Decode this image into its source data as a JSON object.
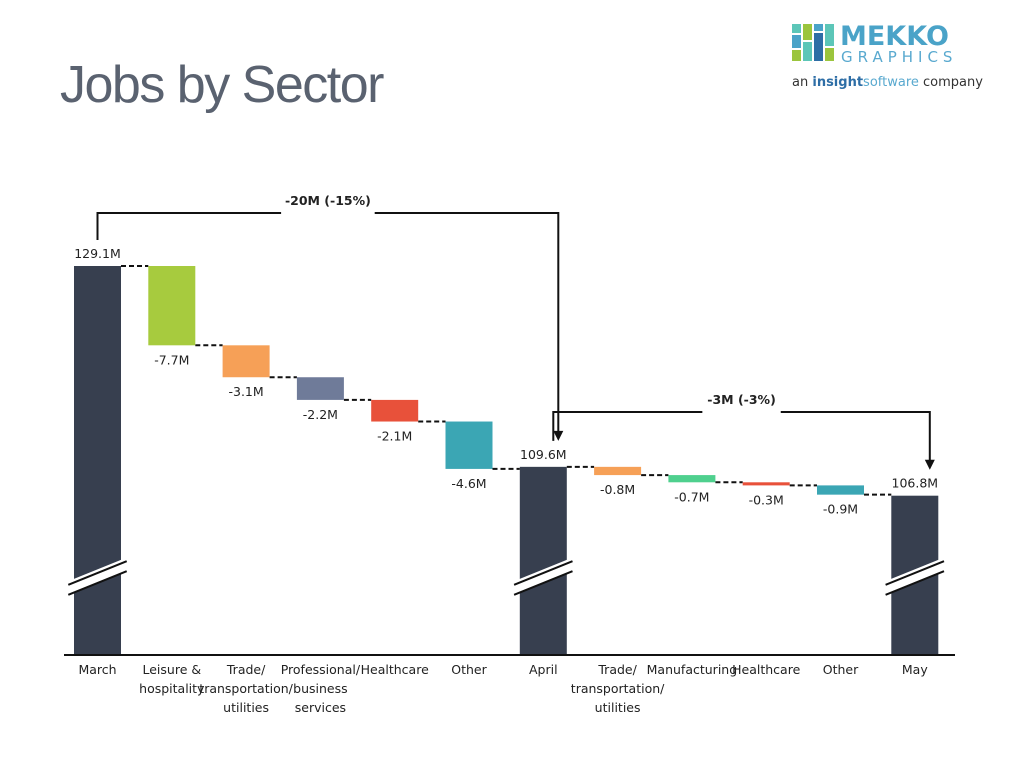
{
  "title": "Jobs by Sector",
  "logo": {
    "name": "MEKKO",
    "sub": "GRAPHICS",
    "tagline_prefix": "an",
    "tagline_brand_1": "insight",
    "tagline_brand_2": "software",
    "tagline_suffix": "company",
    "colors": [
      "#5cc6b8",
      "#4aa3c8",
      "#9bc53d",
      "#2e6ea6"
    ]
  },
  "chart_data": {
    "type": "waterfall",
    "title": "Jobs by Sector",
    "axis_break": true,
    "y_range": [
      100,
      130
    ],
    "colors": {
      "total": "#373f4f",
      "Leisure & hospitality": "#a7cb3e",
      "Trade/ transportation/ utilities": "#f6a057",
      "Professional/ business services": "#6f7b99",
      "Healthcare": "#e8513a",
      "Other": "#3ba6b4",
      "Manufacturing": "#4fd08e"
    },
    "bars": [
      {
        "category": "March",
        "kind": "total",
        "value": 129.1,
        "label": "129.1M",
        "cat_lines": [
          "March"
        ]
      },
      {
        "category": "Leisure & hospitality",
        "kind": "delta",
        "value": -7.7,
        "label": "-7.7M",
        "cat_lines": [
          "Leisure &",
          "hospitality"
        ]
      },
      {
        "category": "Trade/ transportation/ utilities",
        "kind": "delta",
        "value": -3.1,
        "label": "-3.1M",
        "cat_lines": [
          "Trade/",
          "transportation/",
          "utilities"
        ]
      },
      {
        "category": "Professional/ business services",
        "kind": "delta",
        "value": -2.2,
        "label": "-2.2M",
        "cat_lines": [
          "Professional/",
          "business",
          "services"
        ]
      },
      {
        "category": "Healthcare",
        "kind": "delta",
        "value": -2.1,
        "label": "-2.1M",
        "cat_lines": [
          "Healthcare"
        ]
      },
      {
        "category": "Other",
        "kind": "delta",
        "value": -4.6,
        "label": "-4.6M",
        "cat_lines": [
          "Other"
        ]
      },
      {
        "category": "April",
        "kind": "total",
        "value": 109.6,
        "label": "109.6M",
        "cat_lines": [
          "April"
        ]
      },
      {
        "category": "Trade/ transportation/ utilities",
        "kind": "delta",
        "value": -0.8,
        "label": "-0.8M",
        "cat_lines": [
          "Trade/",
          "transportation/",
          "utilities"
        ]
      },
      {
        "category": "Manufacturing",
        "kind": "delta",
        "value": -0.7,
        "label": "-0.7M",
        "cat_lines": [
          "Manufacturing"
        ]
      },
      {
        "category": "Healthcare",
        "kind": "delta",
        "value": -0.3,
        "label": "-0.3M",
        "cat_lines": [
          "Healthcare"
        ]
      },
      {
        "category": "Other",
        "kind": "delta",
        "value": -0.9,
        "label": "-0.9M",
        "cat_lines": [
          "Other"
        ]
      },
      {
        "category": "May",
        "kind": "total",
        "value": 106.8,
        "label": "106.8M",
        "cat_lines": [
          "May"
        ]
      }
    ],
    "annotations": [
      {
        "from": "March",
        "to": "April",
        "label": "-20M (-15%)"
      },
      {
        "from": "April",
        "to": "May",
        "label": "-3M (-3%)"
      }
    ]
  }
}
